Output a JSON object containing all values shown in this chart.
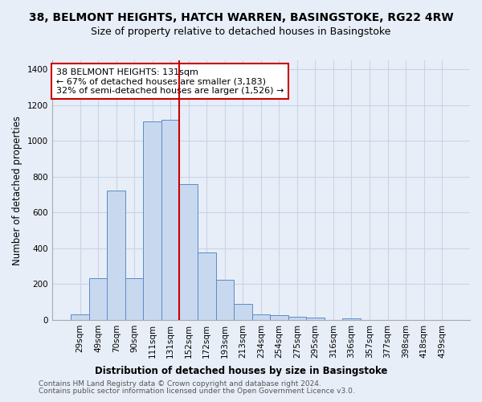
{
  "title": "38, BELMONT HEIGHTS, HATCH WARREN, BASINGSTOKE, RG22 4RW",
  "subtitle": "Size of property relative to detached houses in Basingstoke",
  "xlabel": "Distribution of detached houses by size in Basingstoke",
  "ylabel": "Number of detached properties",
  "categories": [
    "29sqm",
    "49sqm",
    "70sqm",
    "90sqm",
    "111sqm",
    "131sqm",
    "152sqm",
    "172sqm",
    "193sqm",
    "213sqm",
    "234sqm",
    "254sqm",
    "275sqm",
    "295sqm",
    "316sqm",
    "336sqm",
    "357sqm",
    "377sqm",
    "398sqm",
    "418sqm",
    "439sqm"
  ],
  "bar_heights": [
    30,
    235,
    725,
    235,
    1110,
    1120,
    760,
    375,
    225,
    90,
    30,
    25,
    20,
    15,
    0,
    10,
    0,
    0,
    0,
    0,
    0
  ],
  "bar_color": "#c8d8ee",
  "bar_edge_color": "#5b8cc8",
  "highlight_index": 5,
  "highlight_line_color": "#cc0000",
  "annotation_text": "38 BELMONT HEIGHTS: 131sqm\n← 67% of detached houses are smaller (3,183)\n32% of semi-detached houses are larger (1,526) →",
  "annotation_box_color": "white",
  "annotation_box_edge_color": "#cc0000",
  "ylim": [
    0,
    1450
  ],
  "yticks": [
    0,
    200,
    400,
    600,
    800,
    1000,
    1200,
    1400
  ],
  "grid_color": "#c8d4e8",
  "background_color": "#e8eef8",
  "footer_line1": "Contains HM Land Registry data © Crown copyright and database right 2024.",
  "footer_line2": "Contains public sector information licensed under the Open Government Licence v3.0.",
  "title_fontsize": 10,
  "subtitle_fontsize": 9,
  "axis_label_fontsize": 8.5,
  "tick_fontsize": 7.5,
  "annotation_fontsize": 8,
  "footer_fontsize": 6.5
}
